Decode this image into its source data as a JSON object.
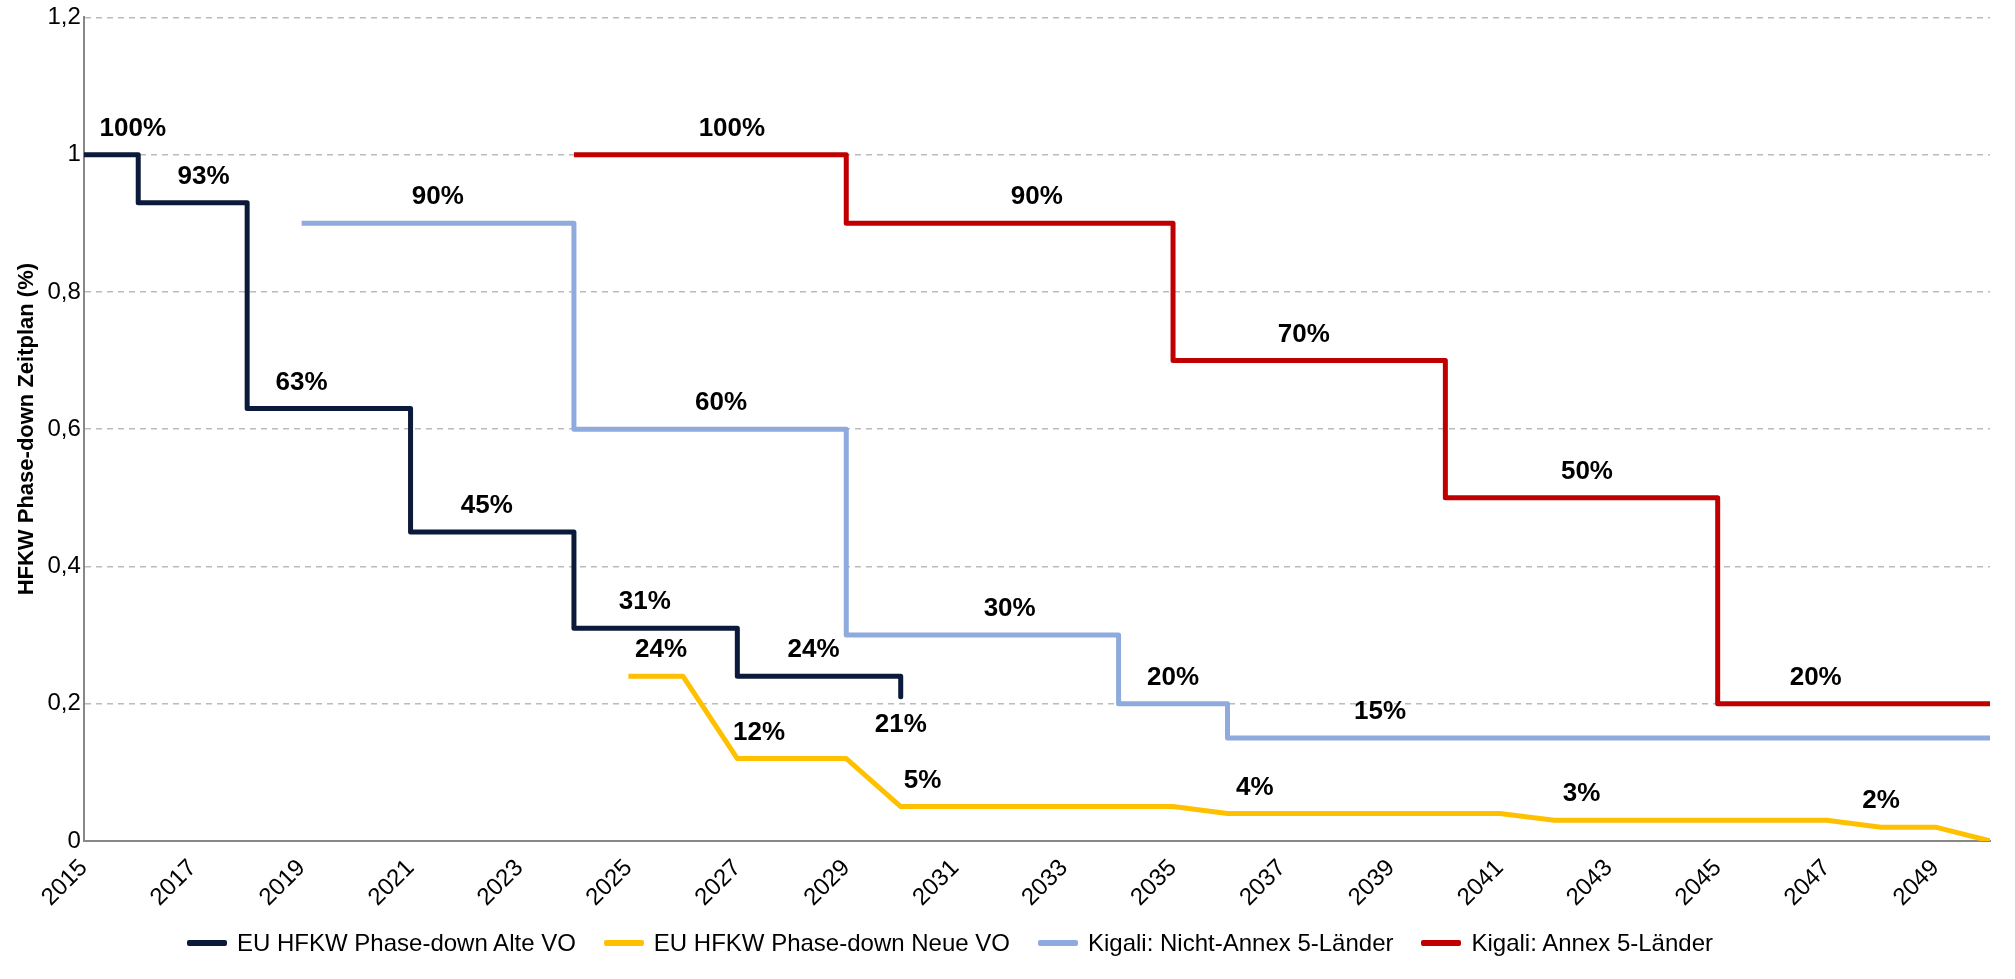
{
  "chart_data": {
    "type": "line",
    "ylabel": "HFKW Phase-down Zeitplan (%)",
    "xlim": [
      2015,
      2050
    ],
    "xticks": [
      2015,
      2017,
      2019,
      2021,
      2023,
      2025,
      2027,
      2029,
      2031,
      2033,
      2035,
      2037,
      2039,
      2041,
      2043,
      2045,
      2047,
      2049
    ],
    "ylim": [
      0,
      1.2
    ],
    "yticks": [
      0,
      {
        "value": 0.2,
        "label": "0,2"
      },
      {
        "value": 0.4,
        "label": "0,4"
      },
      {
        "value": 0.6,
        "label": "0,6"
      },
      {
        "value": 0.8,
        "label": "0,8"
      },
      1,
      {
        "value": 1.2,
        "label": "1,2"
      }
    ],
    "grid": "y",
    "legend": "bottom",
    "marker": "none",
    "line_style": "solid",
    "series": [
      {
        "name": "EU HFKW Phase-down Alte VO",
        "color": "#0b1a3a",
        "x": [
          2015,
          2016,
          2016,
          2018,
          2018,
          2021,
          2021,
          2024,
          2024,
          2027,
          2027,
          2030,
          2030
        ],
        "values": [
          1,
          1,
          0.93,
          0.93,
          0.63,
          0.63,
          0.45,
          0.45,
          0.31,
          0.31,
          0.24,
          0.24,
          0.21
        ]
      },
      {
        "name": "EU HFKW Phase-down Neue VO",
        "color": "#ffc000",
        "x": [
          2025,
          2026,
          2027,
          2029,
          2030,
          2035,
          2036,
          2041,
          2042,
          2047,
          2048,
          2049,
          2050
        ],
        "values": [
          0.24,
          0.24,
          0.12,
          0.12,
          0.05,
          0.05,
          0.04,
          0.04,
          0.03,
          0.03,
          0.02,
          0.02,
          0
        ]
      },
      {
        "name": "Kigali: Nicht-Annex 5-Länder",
        "color": "#8faadc",
        "x": [
          2019,
          2024,
          2024,
          2029,
          2029,
          2034,
          2034,
          2036,
          2036,
          2050
        ],
        "values": [
          0.9,
          0.9,
          0.6,
          0.6,
          0.3,
          0.3,
          0.2,
          0.2,
          0.15,
          0.15
        ]
      },
      {
        "name": "Kigali: Annex 5-Länder",
        "color": "#c00000",
        "x": [
          2024,
          2029,
          2029,
          2035,
          2035,
          2040,
          2040,
          2045,
          2045,
          2050
        ],
        "values": [
          1,
          1,
          0.9,
          0.9,
          0.7,
          0.7,
          0.5,
          0.5,
          0.2,
          0.2
        ]
      }
    ],
    "annotations": [
      {
        "text": "100%",
        "x": 2015.9,
        "y": 1
      },
      {
        "text": "93%",
        "x": 2017.2,
        "y": 0.93
      },
      {
        "text": "63%",
        "x": 2019.0,
        "y": 0.63
      },
      {
        "text": "45%",
        "x": 2022.4,
        "y": 0.45
      },
      {
        "text": "31%",
        "x": 2025.3,
        "y": 0.31
      },
      {
        "text": "24%",
        "x": 2025.6,
        "y": 0.24
      },
      {
        "text": "24%",
        "x": 2028.4,
        "y": 0.24
      },
      {
        "text": "21%",
        "x": 2030,
        "y": 0.21
      },
      {
        "text": "12%",
        "x": 2027.4,
        "y": 0.12
      },
      {
        "text": "5%",
        "x": 2030.4,
        "y": 0.05
      },
      {
        "text": "4%",
        "x": 2036.5,
        "y": 0.04
      },
      {
        "text": "3%",
        "x": 2042.5,
        "y": 0.03
      },
      {
        "text": "2%",
        "x": 2048.0,
        "y": 0.02
      },
      {
        "text": "90%",
        "x": 2021.5,
        "y": 0.9
      },
      {
        "text": "60%",
        "x": 2026.7,
        "y": 0.6
      },
      {
        "text": "30%",
        "x": 2032.0,
        "y": 0.3
      },
      {
        "text": "20%",
        "x": 2035.0,
        "y": 0.2
      },
      {
        "text": "15%",
        "x": 2038.8,
        "y": 0.15
      },
      {
        "text": "100%",
        "x": 2026.9,
        "y": 1
      },
      {
        "text": "90%",
        "x": 2032.5,
        "y": 0.9
      },
      {
        "text": "70%",
        "x": 2037.4,
        "y": 0.7
      },
      {
        "text": "50%",
        "x": 2042.6,
        "y": 0.5
      },
      {
        "text": "20%",
        "x": 2046.8,
        "y": 0.2
      }
    ]
  }
}
